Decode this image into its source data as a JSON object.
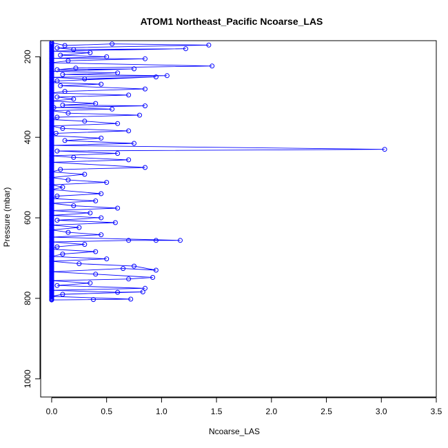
{
  "chart_data": {
    "type": "scatter",
    "title": "ATOM1 Northeast_Pacific Ncoarse_LAS",
    "xlabel": "Ncoarse_LAS",
    "ylabel": "Pressure (mbar)",
    "xlim": [
      -0.1,
      3.5
    ],
    "ylim": [
      1045,
      160
    ],
    "y_reversed": true,
    "x_ticks": [
      0.0,
      0.5,
      1.0,
      1.5,
      2.0,
      2.5,
      3.0,
      3.5
    ],
    "x_tick_labels": [
      "0.0",
      "0.5",
      "1.0",
      "1.5",
      "2.0",
      "2.5",
      "3.0",
      "3.5"
    ],
    "y_ticks": [
      200,
      400,
      600,
      800,
      1000
    ],
    "y_tick_labels": [
      "200",
      "400",
      "600",
      "800",
      "1000"
    ],
    "grid": false,
    "legend": "none",
    "series_color": "#0000ff",
    "marker": "open-circle",
    "line": true,
    "series": [
      {
        "points": [
          [
            0.0,
            165
          ],
          [
            0.12,
            172
          ],
          [
            0.55,
            168
          ],
          [
            1.43,
            171
          ],
          [
            0.05,
            178
          ],
          [
            0.2,
            182
          ],
          [
            1.22,
            180
          ],
          [
            0.0,
            186
          ],
          [
            0.35,
            190
          ],
          [
            0.08,
            196
          ],
          [
            0.5,
            200
          ],
          [
            0.0,
            204
          ],
          [
            0.85,
            205
          ],
          [
            0.15,
            210
          ],
          [
            0.0,
            215
          ],
          [
            1.46,
            223
          ],
          [
            0.22,
            228
          ],
          [
            0.05,
            232
          ],
          [
            0.75,
            230
          ],
          [
            0.0,
            236
          ],
          [
            0.6,
            240
          ],
          [
            0.1,
            244
          ],
          [
            1.05,
            247
          ],
          [
            0.0,
            251
          ],
          [
            0.3,
            255
          ],
          [
            0.95,
            250
          ],
          [
            0.05,
            260
          ],
          [
            0.0,
            264
          ],
          [
            0.45,
            268
          ],
          [
            0.08,
            272
          ],
          [
            0.85,
            280
          ],
          [
            0.12,
            286
          ],
          [
            0.0,
            290
          ],
          [
            0.7,
            295
          ],
          [
            0.05,
            300
          ],
          [
            0.2,
            305
          ],
          [
            0.0,
            310
          ],
          [
            0.4,
            316
          ],
          [
            0.1,
            320
          ],
          [
            0.85,
            322
          ],
          [
            0.02,
            326
          ],
          [
            0.55,
            330
          ],
          [
            0.0,
            334
          ],
          [
            0.15,
            340
          ],
          [
            0.8,
            345
          ],
          [
            0.05,
            350
          ],
          [
            0.0,
            356
          ],
          [
            0.3,
            360
          ],
          [
            0.6,
            366
          ],
          [
            0.0,
            372
          ],
          [
            0.1,
            378
          ],
          [
            0.7,
            384
          ],
          [
            0.04,
            390
          ],
          [
            0.0,
            396
          ],
          [
            0.45,
            402
          ],
          [
            0.12,
            408
          ],
          [
            0.75,
            415
          ],
          [
            0.0,
            420
          ],
          [
            3.03,
            430
          ],
          [
            0.05,
            434
          ],
          [
            0.6,
            440
          ],
          [
            0.0,
            446
          ],
          [
            0.2,
            450
          ],
          [
            0.7,
            456
          ],
          [
            0.0,
            462
          ],
          [
            0.85,
            475
          ],
          [
            0.08,
            480
          ],
          [
            0.0,
            486
          ],
          [
            0.3,
            492
          ],
          [
            0.0,
            500
          ],
          [
            0.15,
            506
          ],
          [
            0.5,
            512
          ],
          [
            0.0,
            518
          ],
          [
            0.1,
            524
          ],
          [
            0.0,
            530
          ],
          [
            0.45,
            540
          ],
          [
            0.05,
            546
          ],
          [
            0.0,
            552
          ],
          [
            0.4,
            558
          ],
          [
            0.0,
            564
          ],
          [
            0.2,
            570
          ],
          [
            0.6,
            576
          ],
          [
            0.0,
            582
          ],
          [
            0.35,
            588
          ],
          [
            0.0,
            594
          ],
          [
            0.45,
            600
          ],
          [
            0.05,
            606
          ],
          [
            0.58,
            612
          ],
          [
            0.0,
            618
          ],
          [
            0.25,
            624
          ],
          [
            0.0,
            630
          ],
          [
            0.15,
            636
          ],
          [
            0.45,
            642
          ],
          [
            0.0,
            648
          ],
          [
            1.17,
            656
          ],
          [
            0.95,
            656
          ],
          [
            0.7,
            656
          ],
          [
            0.0,
            660
          ],
          [
            0.3,
            666
          ],
          [
            0.05,
            672
          ],
          [
            0.0,
            678
          ],
          [
            0.4,
            684
          ],
          [
            0.1,
            690
          ],
          [
            0.0,
            696
          ],
          [
            0.5,
            702
          ],
          [
            0.0,
            708
          ],
          [
            0.25,
            714
          ],
          [
            0.75,
            720
          ],
          [
            0.95,
            730
          ],
          [
            0.65,
            726
          ],
          [
            0.0,
            734
          ],
          [
            0.4,
            740
          ],
          [
            0.92,
            748
          ],
          [
            0.7,
            752
          ],
          [
            0.0,
            756
          ],
          [
            0.35,
            762
          ],
          [
            0.05,
            768
          ],
          [
            0.85,
            775
          ],
          [
            0.0,
            780
          ],
          [
            0.6,
            785
          ],
          [
            0.83,
            784
          ],
          [
            0.1,
            790
          ],
          [
            0.0,
            795
          ],
          [
            0.72,
            802
          ],
          [
            0.38,
            803
          ],
          [
            0.0,
            804
          ]
        ]
      }
    ]
  }
}
